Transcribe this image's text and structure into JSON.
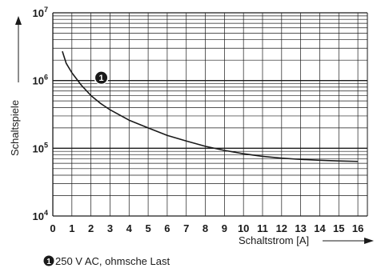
{
  "chart_data": {
    "type": "line",
    "xlabel": "Schaltstrom [A]",
    "ylabel": "Schaltspiele",
    "x_ticks": [
      "0",
      "1",
      "2",
      "3",
      "4",
      "5",
      "6",
      "7",
      "8",
      "9",
      "10",
      "11",
      "12",
      "13",
      "14",
      "15",
      "16"
    ],
    "xlim": [
      0,
      16.5
    ],
    "y_scale": "log",
    "ylim": [
      10000,
      10000000
    ],
    "y_ticks": [
      {
        "value": 10000,
        "base": "10",
        "exp": "4"
      },
      {
        "value": 100000,
        "base": "10",
        "exp": "5"
      },
      {
        "value": 1000000,
        "base": "10",
        "exp": "6"
      },
      {
        "value": 10000000,
        "base": "10",
        "exp": "7"
      }
    ],
    "grid": true,
    "series": [
      {
        "marker": "1",
        "label": "250 V AC, ohmsche Last",
        "color": "#1a1a1a",
        "x": [
          0.5,
          0.7,
          1,
          1.5,
          2,
          2.5,
          3,
          4,
          5,
          6,
          7,
          8,
          9,
          10,
          11,
          12,
          13,
          14,
          15,
          16
        ],
        "y": [
          2700000,
          1800000,
          1300000,
          850000,
          600000,
          460000,
          370000,
          260000,
          200000,
          155000,
          128000,
          107000,
          93000,
          83000,
          76000,
          71500,
          68500,
          66500,
          65000,
          64000
        ]
      }
    ]
  }
}
